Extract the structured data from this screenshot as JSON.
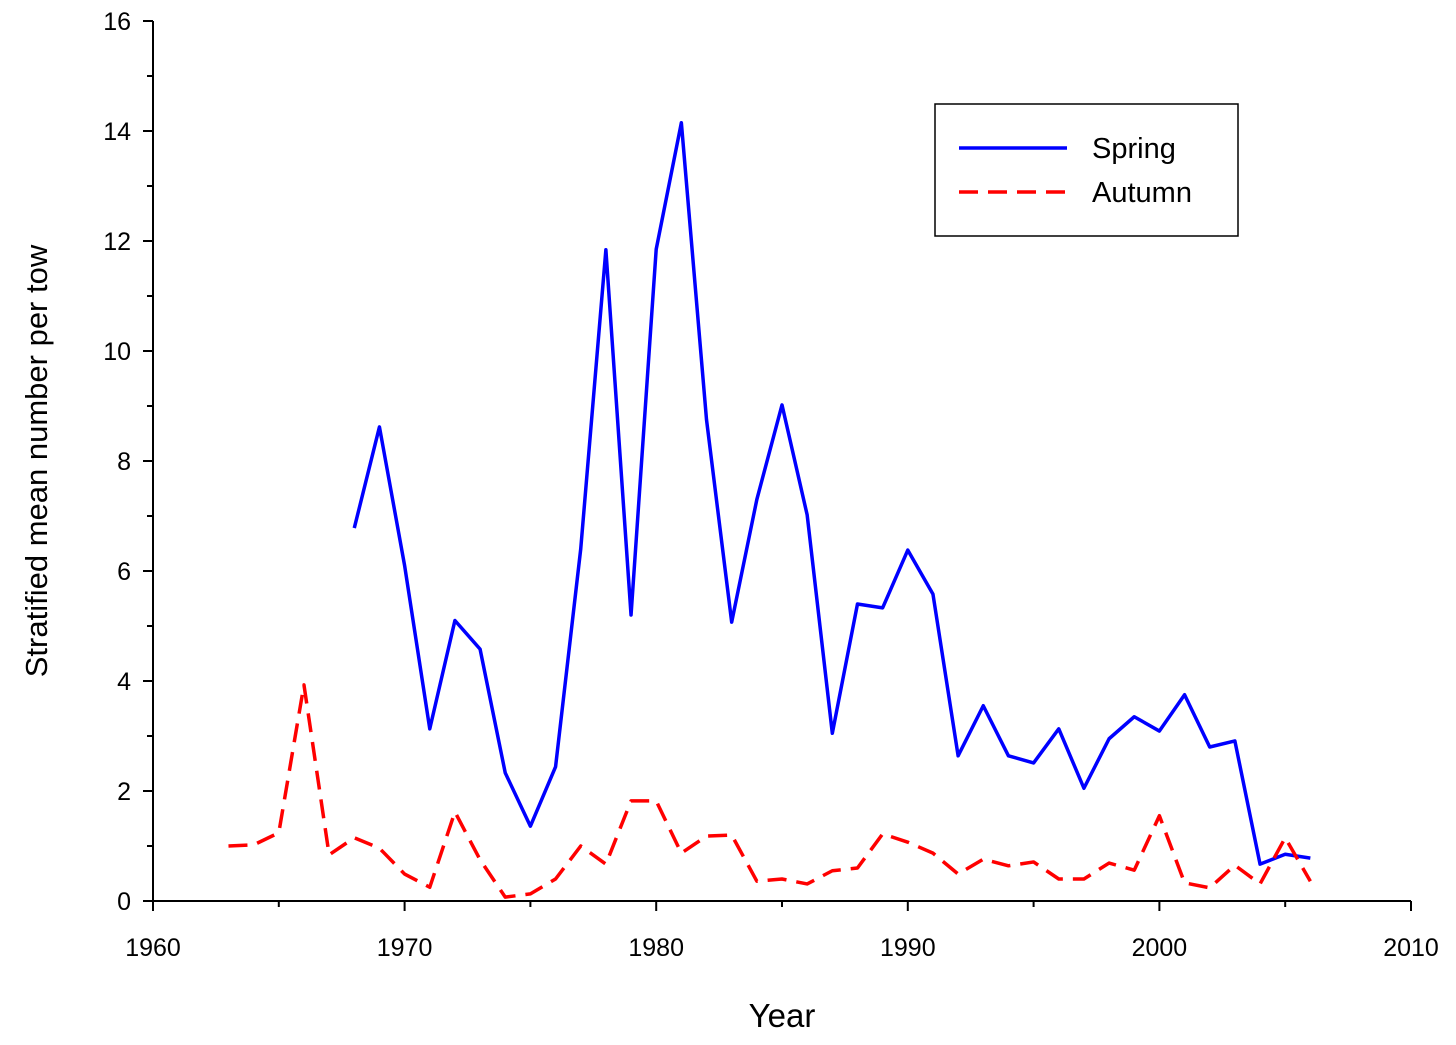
{
  "chart_data": {
    "type": "line",
    "xlabel": "Year",
    "ylabel": "Stratified mean number per tow",
    "xlim": [
      1960,
      2010
    ],
    "xticks": [
      1960,
      1970,
      1980,
      1990,
      2000,
      2010
    ],
    "ylim": [
      0,
      16
    ],
    "yticks": [
      0,
      2,
      4,
      6,
      8,
      10,
      12,
      14,
      16
    ],
    "legend": "upper right",
    "series": [
      {
        "name": "Spring",
        "color": "#0000ff",
        "dash": "solid",
        "x": [
          1968,
          1969,
          1970,
          1971,
          1972,
          1973,
          1974,
          1975,
          1976,
          1977,
          1978,
          1979,
          1980,
          1981,
          1982,
          1983,
          1984,
          1985,
          1986,
          1987,
          1988,
          1989,
          1990,
          1991,
          1992,
          1993,
          1994,
          1995,
          1996,
          1997,
          1998,
          1999,
          2000,
          2001,
          2002,
          2003,
          2004,
          2005,
          2006
        ],
        "values": [
          6.78,
          8.62,
          6.1,
          3.13,
          5.1,
          4.58,
          2.33,
          1.36,
          2.44,
          6.4,
          11.84,
          5.2,
          11.85,
          14.15,
          8.75,
          5.07,
          7.3,
          9.02,
          7.02,
          3.05,
          5.4,
          5.33,
          6.38,
          5.58,
          2.64,
          3.55,
          2.64,
          2.51,
          3.13,
          2.05,
          2.95,
          3.35,
          3.09,
          3.75,
          2.8,
          2.91,
          0.67,
          0.85,
          0.78
        ]
      },
      {
        "name": "Autumn",
        "color": "#ff0000",
        "dash": "dashed",
        "x": [
          1963,
          1964,
          1965,
          1966,
          1967,
          1968,
          1969,
          1970,
          1971,
          1972,
          1973,
          1974,
          1975,
          1976,
          1977,
          1978,
          1979,
          1980,
          1981,
          1982,
          1983,
          1984,
          1985,
          1986,
          1987,
          1988,
          1989,
          1990,
          1991,
          1992,
          1993,
          1994,
          1995,
          1996,
          1997,
          1998,
          1999,
          2000,
          2001,
          2002,
          2003,
          2004,
          2005,
          2006
        ],
        "values": [
          1.0,
          1.02,
          1.24,
          3.93,
          0.84,
          1.15,
          0.96,
          0.49,
          0.25,
          1.62,
          0.75,
          0.07,
          0.13,
          0.4,
          1.0,
          0.67,
          1.82,
          1.82,
          0.87,
          1.18,
          1.2,
          0.36,
          0.4,
          0.31,
          0.55,
          0.6,
          1.22,
          1.07,
          0.87,
          0.49,
          0.76,
          0.64,
          0.71,
          0.4,
          0.4,
          0.69,
          0.56,
          1.55,
          0.33,
          0.24,
          0.65,
          0.31,
          1.15,
          0.36
        ]
      }
    ]
  }
}
